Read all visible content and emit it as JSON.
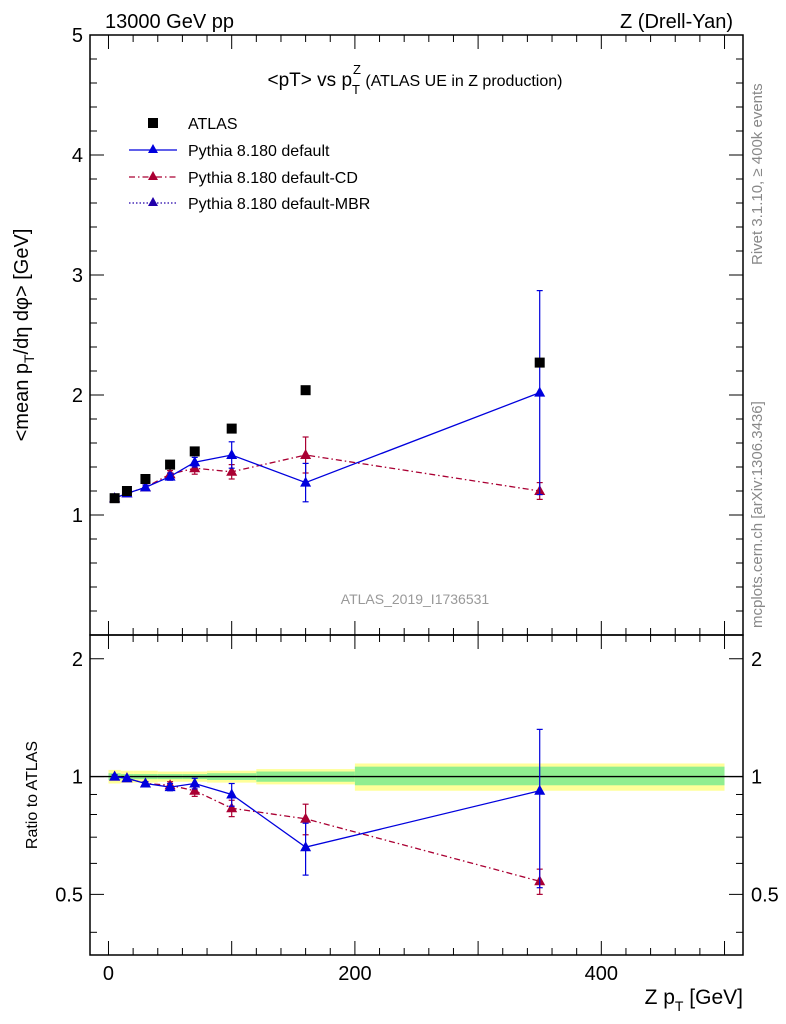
{
  "header": {
    "left": "13000 GeV pp",
    "right": "Z (Drell-Yan)"
  },
  "side_labels": {
    "rivet": "Rivet 3.1.10, ≥ 400k events",
    "mcplots": "mcplots.cern.ch [arXiv:1306.3436]"
  },
  "colors": {
    "atlas": "#000000",
    "default": "#0000dd",
    "cd": "#aa0033",
    "mbr": "#2200aa",
    "band_inner": "#90ee90",
    "band_outer": "#ffff99",
    "watermark": "#999999"
  },
  "chart_data": [
    {
      "type": "scatter",
      "panel": "main",
      "title": "<pT> vs p_T^Z (ATLAS UE in Z production)",
      "title_parts": {
        "main": "<pT> vs p",
        "sub": "T",
        "sup": "Z",
        "rest": " (ATLAS UE in Z production)"
      },
      "ylabel": "<mean p_T/dη dφ> [GeV]",
      "ylabel_parts": {
        "a": "<mean p",
        "sub": "T",
        "b": "/dη dφ> [GeV]"
      },
      "analysis_id": "ATLAS_2019_I1736531",
      "xlim": [
        -15,
        515
      ],
      "ylim": [
        0,
        5
      ],
      "yticks": [
        "1",
        "2",
        "3",
        "4",
        "5"
      ],
      "yticks_values": [
        1,
        2,
        3,
        4,
        5
      ],
      "legend_position": "top-left",
      "series": [
        {
          "name": "ATLAS",
          "marker": "square",
          "x": [
            5,
            15,
            30,
            50,
            70,
            100,
            160,
            350
          ],
          "y": [
            1.14,
            1.2,
            1.3,
            1.42,
            1.53,
            1.72,
            2.04,
            2.27
          ]
        },
        {
          "name": "Pythia 8.180 default",
          "marker": "triangle",
          "line": "solid",
          "x": [
            5,
            15,
            30,
            50,
            70,
            100,
            160,
            350
          ],
          "y": [
            1.14,
            1.18,
            1.23,
            1.32,
            1.44,
            1.5,
            1.27,
            2.02
          ],
          "yerr": [
            0.02,
            0.02,
            0.02,
            0.03,
            0.04,
            0.11,
            0.16,
            0.85
          ]
        },
        {
          "name": "Pythia 8.180 default-CD",
          "marker": "triangle",
          "line": "dashdot",
          "x": [
            5,
            15,
            30,
            50,
            70,
            100,
            160,
            350
          ],
          "y": [
            1.14,
            1.18,
            1.23,
            1.34,
            1.39,
            1.36,
            1.5,
            1.2
          ],
          "yerr": [
            0.02,
            0.02,
            0.02,
            0.03,
            0.05,
            0.06,
            0.15,
            0.07
          ]
        },
        {
          "name": "Pythia 8.180 default-MBR",
          "marker": "triangle",
          "line": "dotted",
          "x": [],
          "y": []
        }
      ]
    },
    {
      "type": "scatter",
      "panel": "ratio",
      "ylabel": "Ratio to ATLAS",
      "xlabel": "Z p_T [GeV]",
      "xlabel_parts": {
        "a": "Z p",
        "sub": "T",
        "b": " [GeV]"
      },
      "xlim": [
        -15,
        515
      ],
      "ylim": [
        0.35,
        2.3
      ],
      "xticks": [
        "0",
        "200",
        "400"
      ],
      "xticks_values": [
        0,
        200,
        400
      ],
      "yticks": [
        "0.5",
        "1",
        "2"
      ],
      "yticks_values": [
        0.5,
        1,
        2
      ],
      "bands": [
        {
          "x0": 0,
          "x1": 10,
          "inner": [
            0.98,
            1.02
          ],
          "outer": [
            0.96,
            1.04
          ]
        },
        {
          "x0": 10,
          "x1": 20,
          "inner": [
            0.985,
            1.015
          ],
          "outer": [
            0.965,
            1.035
          ]
        },
        {
          "x0": 20,
          "x1": 40,
          "inner": [
            0.985,
            1.015
          ],
          "outer": [
            0.965,
            1.035
          ]
        },
        {
          "x0": 40,
          "x1": 60,
          "inner": [
            0.985,
            1.015
          ],
          "outer": [
            0.97,
            1.03
          ]
        },
        {
          "x0": 60,
          "x1": 80,
          "inner": [
            0.985,
            1.015
          ],
          "outer": [
            0.97,
            1.03
          ]
        },
        {
          "x0": 80,
          "x1": 120,
          "inner": [
            0.98,
            1.02
          ],
          "outer": [
            0.965,
            1.035
          ]
        },
        {
          "x0": 120,
          "x1": 200,
          "inner": [
            0.97,
            1.03
          ],
          "outer": [
            0.955,
            1.045
          ]
        },
        {
          "x0": 200,
          "x1": 500,
          "inner": [
            0.95,
            1.06
          ],
          "outer": [
            0.92,
            1.08
          ]
        }
      ],
      "series": [
        {
          "name": "Pythia 8.180 default",
          "x": [
            5,
            15,
            30,
            50,
            70,
            100,
            160,
            350
          ],
          "y": [
            1.0,
            0.99,
            0.96,
            0.94,
            0.96,
            0.9,
            0.66,
            0.92
          ],
          "yerr": [
            0.01,
            0.01,
            0.01,
            0.02,
            0.03,
            0.06,
            0.1,
            0.4
          ]
        },
        {
          "name": "Pythia 8.180 default-CD",
          "x": [
            5,
            15,
            30,
            50,
            70,
            100,
            160,
            350
          ],
          "y": [
            1.0,
            0.99,
            0.96,
            0.95,
            0.92,
            0.83,
            0.78,
            0.54
          ],
          "yerr": [
            0.01,
            0.01,
            0.01,
            0.02,
            0.03,
            0.04,
            0.07,
            0.04
          ]
        }
      ]
    }
  ]
}
